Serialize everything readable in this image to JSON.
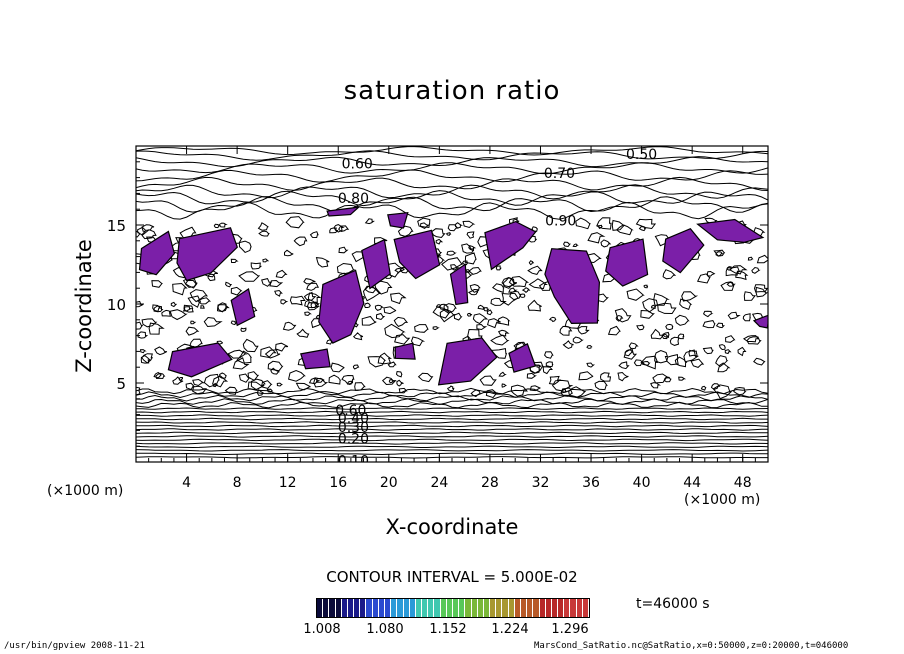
{
  "chart_data": {
    "type": "contour",
    "title": "saturation ratio",
    "xlabel": "X-coordinate",
    "ylabel": "Z-coordinate",
    "x_unit_label_left": "(×1000 m)",
    "x_unit_label_right": "(×1000 m)",
    "xlim": [
      0,
      50
    ],
    "ylim": [
      0,
      20
    ],
    "x_ticks": [
      "4",
      "8",
      "12",
      "16",
      "20",
      "24",
      "28",
      "32",
      "36",
      "40",
      "44",
      "48"
    ],
    "y_ticks": [
      "5",
      "10",
      "15"
    ],
    "contour_interval_text": "CONTOUR INTERVAL = 5.000E-02",
    "contour_labels": [
      {
        "text": "0.50",
        "x": 40,
        "z": 19.5
      },
      {
        "text": "0.60",
        "x": 17.5,
        "z": 18.9
      },
      {
        "text": "0.70",
        "x": 33.5,
        "z": 18.3
      },
      {
        "text": "0.80",
        "x": 17.2,
        "z": 16.7
      },
      {
        "text": "0.90",
        "x": 33.6,
        "z": 15.3
      },
      {
        "text": "0.60",
        "x": 17.0,
        "z": 3.3
      },
      {
        "text": "0.40",
        "x": 17.2,
        "z": 2.8
      },
      {
        "text": "0.30",
        "x": 17.2,
        "z": 2.2
      },
      {
        "text": "0.20",
        "x": 17.2,
        "z": 1.5
      },
      {
        "text": "0.10",
        "x": 17.2,
        "z": 0.1
      }
    ],
    "shaded_threshold": 1.0,
    "shaded_color": "#7b1fa8",
    "colorbar": {
      "tick_labels": [
        "1.008",
        "1.080",
        "1.152",
        "1.224",
        "1.296"
      ],
      "colors": [
        "#0a0a3a",
        "#1a1a8a",
        "#2a4ad0",
        "#2a9ad8",
        "#40c8b0",
        "#58c858",
        "#7ab838",
        "#a89830",
        "#b85a28",
        "#b82828",
        "#c83838"
      ]
    },
    "time_label": "t=46000 s"
  },
  "footer": {
    "left": "/usr/bin/gpview   2008-11-21",
    "right": "MarsCond_SatRatio.nc@SatRatio,x=0:50000,z=0:20000,t=046000"
  }
}
